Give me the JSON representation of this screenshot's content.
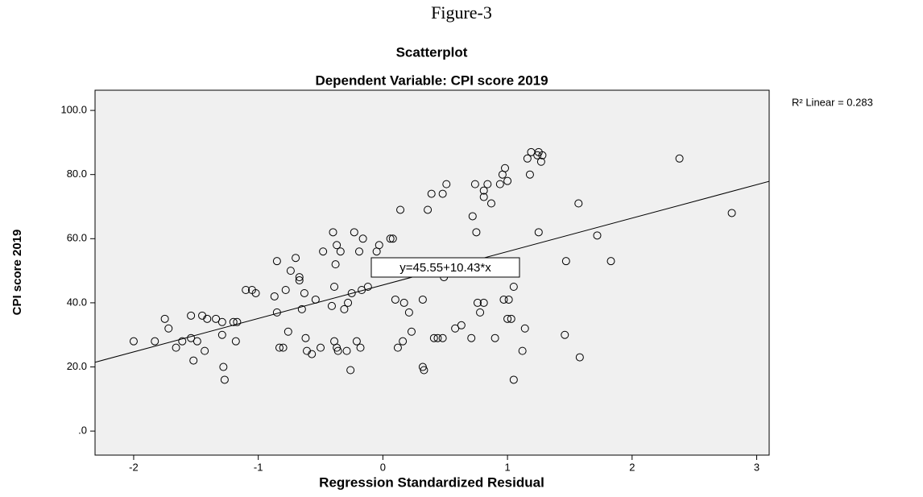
{
  "figure_label": "Figure-3",
  "chart_data": {
    "type": "scatter",
    "title": "Scatterplot",
    "subtitle": "Dependent Variable: CPI score 2019",
    "x_label": "Regression Standardized Residual",
    "y_label": "CPI score 2019",
    "r2_label": "R² Linear = 0.283",
    "fit": {
      "label": "y=45.55+10.43*x",
      "intercept": 45.55,
      "slope": 10.43
    },
    "xlim": [
      -2.31,
      3.1
    ],
    "ylim": [
      -7.5,
      106.3
    ],
    "xticks": [
      -2,
      -1,
      0,
      1,
      2,
      3
    ],
    "yticks": [
      {
        "value": 0,
        "label": ".0"
      },
      {
        "value": 20,
        "label": "20.0"
      },
      {
        "value": 40,
        "label": "40.0"
      },
      {
        "value": 60,
        "label": "60.0"
      },
      {
        "value": 80,
        "label": "80.0"
      },
      {
        "value": 100,
        "label": "100.0"
      }
    ],
    "background": "#f0f0f0",
    "marker_color": "#000000",
    "x": [
      -2.0,
      -1.83,
      -1.75,
      -1.72,
      -1.66,
      -1.61,
      -1.54,
      -1.54,
      -1.52,
      -1.49,
      -1.45,
      -1.43,
      -1.41,
      -1.34,
      -1.29,
      -1.29,
      -1.28,
      -1.27,
      -1.2,
      -1.18,
      -1.17,
      -1.1,
      -1.05,
      -1.02,
      -0.87,
      -0.85,
      -0.85,
      -0.83,
      -0.8,
      -0.78,
      -0.76,
      -0.74,
      -0.7,
      -0.67,
      -0.67,
      -0.65,
      -0.63,
      -0.62,
      -0.61,
      -0.57,
      -0.54,
      -0.5,
      -0.48,
      -0.41,
      -0.4,
      -0.39,
      -0.39,
      -0.38,
      -0.37,
      -0.37,
      -0.36,
      -0.34,
      -0.31,
      -0.29,
      -0.28,
      -0.26,
      -0.25,
      -0.23,
      -0.21,
      -0.19,
      -0.18,
      -0.17,
      -0.16,
      -0.12,
      -0.05,
      -0.03,
      0.06,
      0.08,
      0.1,
      0.12,
      0.14,
      0.16,
      0.17,
      0.21,
      0.23,
      0.32,
      0.32,
      0.33,
      0.36,
      0.39,
      0.41,
      0.44,
      0.48,
      0.48,
      0.49,
      0.51,
      0.58,
      0.63,
      0.71,
      0.72,
      0.74,
      0.75,
      0.76,
      0.78,
      0.81,
      0.81,
      0.81,
      0.84,
      0.87,
      0.9,
      0.94,
      0.96,
      0.97,
      0.98,
      1.0,
      1.0,
      1.01,
      1.03,
      1.05,
      1.05,
      1.12,
      1.14,
      1.16,
      1.18,
      1.19,
      1.24,
      1.25,
      1.25,
      1.27,
      1.28,
      1.46,
      1.47,
      1.57,
      1.58,
      1.72,
      1.83,
      2.38,
      2.8
    ],
    "values": [
      28,
      28,
      35,
      32,
      26,
      28,
      36,
      29,
      22,
      28,
      36,
      25,
      35,
      35,
      34,
      30,
      20,
      16,
      34,
      28,
      34,
      44,
      44,
      43,
      42,
      53,
      37,
      26,
      26,
      44,
      31,
      50,
      54,
      48,
      47,
      38,
      43,
      29,
      25,
      24,
      41,
      26,
      56,
      39,
      62,
      45,
      28,
      52,
      26,
      58,
      25,
      56,
      38,
      25,
      40,
      19,
      43,
      62,
      28,
      56,
      26,
      44,
      60,
      45,
      56,
      58,
      60,
      60,
      41,
      26,
      69,
      28,
      40,
      37,
      31,
      41,
      20,
      19,
      69,
      74,
      29,
      29,
      29,
      74,
      48,
      77,
      32,
      33,
      29,
      67,
      77,
      62,
      40,
      37,
      40,
      75,
      73,
      77,
      71,
      29,
      77,
      80,
      41,
      82,
      78,
      35,
      41,
      35,
      45,
      16,
      25,
      32,
      85,
      80,
      87,
      86,
      62,
      87,
      84,
      86,
      30,
      53,
      71,
      23,
      61,
      53,
      85,
      68
    ]
  }
}
